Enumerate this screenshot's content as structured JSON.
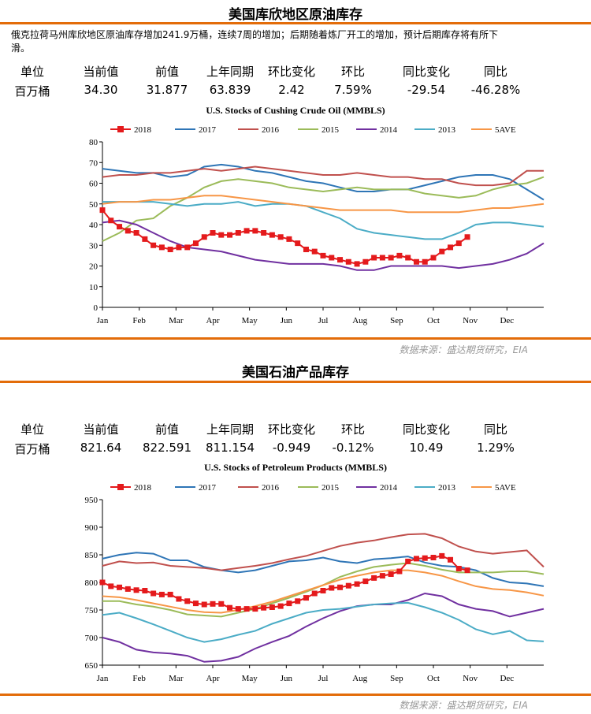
{
  "section1": {
    "heading": "美国库欣地区原油库存",
    "note_line1": "俄克拉荷马州库欣地区原油库存增加241.9万桶，连续7周的增加；后期随着炼厂开工的增加，预计后期库存将有所下",
    "note_line2": "滑。",
    "table": {
      "headers": [
        "单位",
        "当前值",
        "前值",
        "上年同期",
        "环比变化",
        "环比",
        "同比变化",
        "同比"
      ],
      "values": [
        "百万桶",
        "34.30",
        "31.877",
        "63.839",
        "2.42",
        "7.59%",
        "-29.54",
        "-46.28%"
      ]
    },
    "source": "数据来源：盛达期货研究，EIA"
  },
  "section2": {
    "heading": "美国石油产品库存",
    "table": {
      "headers": [
        "单位",
        "当前值",
        "前值",
        "上年同期",
        "环比变化",
        "环比",
        "同比变化",
        "同比"
      ],
      "values": [
        "百万桶",
        "821.64",
        "822.591",
        "811.154",
        "-0.949",
        "-0.12%",
        "10.49",
        "1.29%"
      ]
    },
    "source": "数据来源：盛达期货研究，EIA"
  },
  "colors": {
    "accent": "#e36c09",
    "s2018": "#e41a1c",
    "s2017": "#2e75b6",
    "s2016": "#c0504d",
    "s2015": "#9bbb59",
    "s2014": "#7030a0",
    "s2013": "#4bacc6",
    "s5ave": "#f79646"
  },
  "chart_data": [
    {
      "type": "line",
      "title": "U.S.  Stocks of Cushing  Crude Oil (MMBLS)",
      "categories": [
        "Jan",
        "Feb",
        "Mar",
        "Apr",
        "May",
        "Jun",
        "Jul",
        "Aug",
        "Sep",
        "Oct",
        "Nov",
        "Dec"
      ],
      "xlim": [
        0,
        52
      ],
      "ylim": [
        0,
        80
      ],
      "yticks": [
        0,
        10,
        20,
        30,
        40,
        50,
        60,
        70,
        80
      ],
      "legend_position": "top",
      "series": [
        {
          "name": "2018",
          "color": "#e41a1c",
          "marker": "square",
          "x": [
            0,
            1,
            2,
            3,
            4,
            5,
            6,
            7,
            8,
            9,
            10,
            11,
            12,
            13,
            14,
            15,
            16,
            17,
            18,
            19,
            20,
            21,
            22,
            23,
            24,
            25,
            26,
            27,
            28,
            29,
            30,
            31,
            32,
            33,
            34,
            35,
            36,
            37,
            38,
            39,
            40,
            41,
            42,
            43
          ],
          "values": [
            47,
            42,
            39,
            37,
            36,
            33,
            30,
            29,
            28,
            29,
            29,
            31,
            34,
            36,
            35,
            35,
            36,
            37,
            37,
            36,
            35,
            34,
            33,
            31,
            28,
            27,
            25,
            24,
            23,
            22,
            21,
            22,
            24,
            24,
            24,
            25,
            24,
            22,
            22,
            24,
            27,
            29,
            31,
            34
          ]
        },
        {
          "name": "2017",
          "color": "#2e75b6",
          "x": [
            0,
            2,
            4,
            6,
            8,
            10,
            12,
            14,
            16,
            18,
            20,
            22,
            24,
            26,
            28,
            30,
            32,
            34,
            36,
            38,
            40,
            42,
            44,
            46,
            48,
            50,
            52
          ],
          "values": [
            67,
            66,
            65,
            65,
            63,
            64,
            68,
            69,
            68,
            66,
            65,
            63,
            61,
            60,
            58,
            56,
            56,
            57,
            57,
            59,
            61,
            63,
            64,
            64,
            62,
            57,
            52
          ]
        },
        {
          "name": "2016",
          "color": "#c0504d",
          "x": [
            0,
            2,
            4,
            6,
            8,
            10,
            12,
            14,
            16,
            18,
            20,
            22,
            24,
            26,
            28,
            30,
            32,
            34,
            36,
            38,
            40,
            42,
            44,
            46,
            48,
            50,
            52
          ],
          "values": [
            63,
            64,
            64,
            65,
            65,
            66,
            67,
            66,
            67,
            68,
            67,
            66,
            65,
            64,
            64,
            65,
            64,
            63,
            63,
            62,
            62,
            60,
            59,
            59,
            60,
            66,
            66
          ]
        },
        {
          "name": "2015",
          "color": "#9bbb59",
          "x": [
            0,
            2,
            4,
            6,
            8,
            10,
            12,
            14,
            16,
            18,
            20,
            22,
            24,
            26,
            28,
            30,
            32,
            34,
            36,
            38,
            40,
            42,
            44,
            46,
            48,
            50,
            52
          ],
          "values": [
            32,
            36,
            42,
            43,
            49,
            53,
            58,
            61,
            62,
            61,
            60,
            58,
            57,
            56,
            57,
            58,
            57,
            57,
            57,
            55,
            54,
            53,
            54,
            57,
            59,
            60,
            63
          ]
        },
        {
          "name": "2014",
          "color": "#7030a0",
          "x": [
            0,
            2,
            4,
            6,
            8,
            10,
            12,
            14,
            16,
            18,
            20,
            22,
            24,
            26,
            28,
            30,
            32,
            34,
            36,
            38,
            40,
            42,
            44,
            46,
            48,
            50,
            52
          ],
          "values": [
            41,
            42,
            40,
            36,
            32,
            29,
            28,
            27,
            25,
            23,
            22,
            21,
            21,
            21,
            20,
            18,
            18,
            20,
            20,
            20,
            20,
            19,
            20,
            21,
            23,
            26,
            31
          ]
        },
        {
          "name": "2013",
          "color": "#4bacc6",
          "x": [
            0,
            2,
            4,
            6,
            8,
            10,
            12,
            14,
            16,
            18,
            20,
            22,
            24,
            26,
            28,
            30,
            32,
            34,
            36,
            38,
            40,
            42,
            44,
            46,
            48,
            50,
            52
          ],
          "values": [
            51,
            51,
            51,
            51,
            50,
            49,
            50,
            50,
            51,
            49,
            50,
            50,
            49,
            46,
            43,
            38,
            36,
            35,
            34,
            33,
            33,
            36,
            40,
            41,
            41,
            40,
            39
          ]
        },
        {
          "name": "5AVE",
          "color": "#f79646",
          "x": [
            0,
            2,
            4,
            6,
            8,
            10,
            12,
            14,
            16,
            18,
            20,
            22,
            24,
            26,
            28,
            30,
            32,
            34,
            36,
            38,
            40,
            42,
            44,
            46,
            48,
            50,
            52
          ],
          "values": [
            50,
            51,
            51,
            52,
            52,
            53,
            54,
            54,
            53,
            52,
            51,
            50,
            49,
            48,
            47,
            47,
            47,
            47,
            46,
            46,
            46,
            46,
            47,
            48,
            48,
            49,
            50
          ]
        }
      ]
    },
    {
      "type": "line",
      "title": "U.S.  Stocks of Petroleum Products (MMBLS)",
      "categories": [
        "Jan",
        "Feb",
        "Mar",
        "Apr",
        "May",
        "Jun",
        "Jul",
        "Aug",
        "Sep",
        "Oct",
        "Nov",
        "Dec"
      ],
      "xlim": [
        0,
        52
      ],
      "ylim": [
        650,
        950
      ],
      "yticks": [
        650,
        700,
        750,
        800,
        850,
        900,
        950
      ],
      "legend_position": "top",
      "series": [
        {
          "name": "2018",
          "color": "#e41a1c",
          "marker": "square",
          "x": [
            0,
            1,
            2,
            3,
            4,
            5,
            6,
            7,
            8,
            9,
            10,
            11,
            12,
            13,
            14,
            15,
            16,
            17,
            18,
            19,
            20,
            21,
            22,
            23,
            24,
            25,
            26,
            27,
            28,
            29,
            30,
            31,
            32,
            33,
            34,
            35,
            36,
            37,
            38,
            39,
            40,
            41,
            42,
            43
          ],
          "values": [
            800,
            793,
            791,
            788,
            786,
            785,
            780,
            778,
            778,
            770,
            766,
            762,
            760,
            761,
            761,
            754,
            752,
            752,
            752,
            754,
            755,
            757,
            762,
            766,
            772,
            780,
            785,
            790,
            791,
            794,
            797,
            802,
            808,
            812,
            815,
            820,
            838,
            843,
            844,
            845,
            848,
            841,
            825,
            822
          ]
        },
        {
          "name": "2017",
          "color": "#2e75b6",
          "x": [
            0,
            2,
            4,
            6,
            8,
            10,
            12,
            14,
            16,
            18,
            20,
            22,
            24,
            26,
            28,
            30,
            32,
            34,
            36,
            38,
            40,
            42,
            44,
            46,
            48,
            50,
            52
          ],
          "values": [
            843,
            850,
            854,
            852,
            840,
            840,
            828,
            822,
            818,
            822,
            830,
            838,
            840,
            845,
            838,
            835,
            842,
            844,
            847,
            836,
            830,
            828,
            822,
            808,
            800,
            798,
            793
          ]
        },
        {
          "name": "2016",
          "color": "#c0504d",
          "x": [
            0,
            2,
            4,
            6,
            8,
            10,
            12,
            14,
            16,
            18,
            20,
            22,
            24,
            26,
            28,
            30,
            32,
            34,
            36,
            38,
            40,
            42,
            44,
            46,
            48,
            50,
            52
          ],
          "values": [
            830,
            838,
            835,
            836,
            830,
            828,
            826,
            822,
            826,
            830,
            835,
            842,
            848,
            857,
            866,
            872,
            876,
            882,
            887,
            888,
            880,
            865,
            856,
            852,
            855,
            858,
            828
          ]
        },
        {
          "name": "2015",
          "color": "#9bbb59",
          "x": [
            0,
            2,
            4,
            6,
            8,
            10,
            12,
            14,
            16,
            18,
            20,
            22,
            24,
            26,
            28,
            30,
            32,
            34,
            36,
            38,
            40,
            42,
            44,
            46,
            48,
            50,
            52
          ],
          "values": [
            766,
            766,
            760,
            756,
            750,
            742,
            740,
            738,
            745,
            752,
            762,
            772,
            783,
            795,
            810,
            820,
            828,
            832,
            835,
            830,
            823,
            818,
            818,
            818,
            820,
            820,
            815
          ]
        },
        {
          "name": "2014",
          "color": "#7030a0",
          "x": [
            0,
            2,
            4,
            6,
            8,
            10,
            12,
            14,
            16,
            18,
            20,
            22,
            24,
            26,
            28,
            30,
            32,
            34,
            36,
            38,
            40,
            42,
            44,
            46,
            48,
            50,
            52
          ],
          "values": [
            700,
            692,
            678,
            673,
            671,
            667,
            656,
            658,
            665,
            680,
            692,
            703,
            720,
            735,
            748,
            757,
            760,
            760,
            768,
            780,
            775,
            760,
            752,
            748,
            738,
            745,
            752
          ]
        },
        {
          "name": "2013",
          "color": "#4bacc6",
          "x": [
            0,
            2,
            4,
            6,
            8,
            10,
            12,
            14,
            16,
            18,
            20,
            22,
            24,
            26,
            28,
            30,
            32,
            34,
            36,
            38,
            40,
            42,
            44,
            46,
            48,
            50,
            52
          ],
          "values": [
            741,
            745,
            735,
            724,
            712,
            700,
            692,
            697,
            705,
            712,
            725,
            735,
            745,
            750,
            752,
            756,
            760,
            762,
            763,
            755,
            745,
            732,
            715,
            706,
            712,
            695,
            693
          ]
        },
        {
          "name": "5AVE",
          "color": "#f79646",
          "x": [
            0,
            2,
            4,
            6,
            8,
            10,
            12,
            14,
            16,
            18,
            20,
            22,
            24,
            26,
            28,
            30,
            32,
            34,
            36,
            38,
            40,
            42,
            44,
            46,
            48,
            50,
            52
          ],
          "values": [
            775,
            773,
            768,
            762,
            756,
            750,
            746,
            745,
            750,
            757,
            765,
            775,
            785,
            795,
            805,
            812,
            818,
            822,
            822,
            818,
            812,
            802,
            793,
            788,
            786,
            782,
            776
          ]
        }
      ]
    }
  ]
}
